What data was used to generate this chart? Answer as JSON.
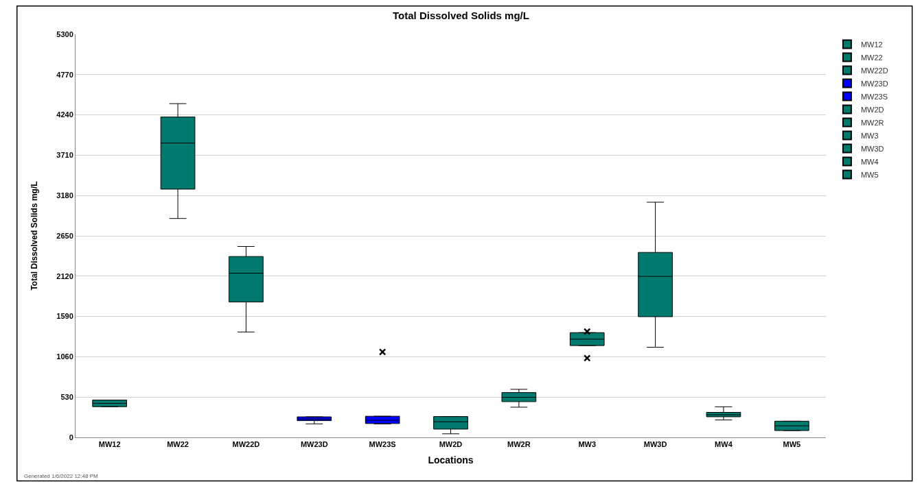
{
  "chart_data": {
    "type": "box",
    "title": "Total Dissolved Solids mg/L",
    "xlabel": "Locations",
    "ylabel": "Total Dissolved Solids mg/L",
    "categories": [
      "MW12",
      "MW22",
      "MW22D",
      "MW23D",
      "MW23S",
      "MW2D",
      "MW2R",
      "MW3",
      "MW3D",
      "MW4",
      "MW5"
    ],
    "series": [
      {
        "name": "MW12",
        "color": "#00796f",
        "boxes": [
          {
            "low": 404,
            "q1": 404,
            "median": 447,
            "q3": 491,
            "high": 491
          },
          null,
          null,
          null,
          null,
          null,
          null,
          null,
          null,
          null,
          null
        ]
      },
      {
        "name": "MW22",
        "color": "#00796f",
        "boxes": [
          null,
          {
            "low": 2878,
            "q1": 3264,
            "median": 3870,
            "q3": 4212,
            "high": 4388
          },
          null,
          null,
          null,
          null,
          null,
          null,
          null,
          null,
          null
        ]
      },
      {
        "name": "MW22D",
        "color": "#00796f",
        "boxes": [
          null,
          null,
          {
            "low": 1386,
            "q1": 1781,
            "median": 2159,
            "q3": 2378,
            "high": 2510
          },
          null,
          null,
          null,
          null,
          null,
          null,
          null,
          null
        ]
      },
      {
        "name": "MW23D",
        "color": "#0000ff",
        "boxes": [
          null,
          null,
          null,
          {
            "low": 178,
            "q1": 220,
            "median": 240,
            "q3": 270,
            "high": 270
          },
          null,
          null,
          null,
          null,
          null,
          null,
          null
        ]
      },
      {
        "name": "MW23S",
        "color": "#0000ff",
        "boxes": [
          null,
          null,
          null,
          null,
          {
            "low": 178,
            "q1": 182,
            "median": 224,
            "q3": 278,
            "high": 278,
            "outliers": [
              1123
            ]
          },
          null,
          null,
          null,
          null,
          null,
          null
        ]
      },
      {
        "name": "MW2D",
        "color": "#00796f",
        "boxes": [
          null,
          null,
          null,
          null,
          null,
          {
            "low": 47,
            "q1": 109,
            "median": 205,
            "q3": 274,
            "high": 274
          },
          null,
          null,
          null,
          null,
          null
        ]
      },
      {
        "name": "MW2R",
        "color": "#00796f",
        "boxes": [
          null,
          null,
          null,
          null,
          null,
          null,
          {
            "low": 397,
            "q1": 470,
            "median": 527,
            "q3": 589,
            "high": 632
          },
          null,
          null,
          null,
          null
        ]
      },
      {
        "name": "MW3",
        "color": "#00796f",
        "boxes": [
          null,
          null,
          null,
          null,
          null,
          null,
          null,
          {
            "low": 1207,
            "q1": 1207,
            "median": 1292,
            "q3": 1377,
            "high": 1377,
            "outliers": [
              1392,
              1042
            ]
          },
          null,
          null,
          null
        ]
      },
      {
        "name": "MW3D",
        "color": "#00796f",
        "boxes": [
          null,
          null,
          null,
          null,
          null,
          null,
          null,
          null,
          {
            "low": 1185,
            "q1": 1587,
            "median": 2117,
            "q3": 2432,
            "high": 3092
          },
          null,
          null
        ]
      },
      {
        "name": "MW4",
        "color": "#00796f",
        "boxes": [
          null,
          null,
          null,
          null,
          null,
          null,
          null,
          null,
          null,
          {
            "low": 229,
            "q1": 271,
            "median": 298,
            "q3": 329,
            "high": 402
          },
          null
        ]
      },
      {
        "name": "MW5",
        "color": "#00796f",
        "boxes": [
          null,
          null,
          null,
          null,
          null,
          null,
          null,
          null,
          null,
          null,
          {
            "low": 90,
            "q1": 90,
            "median": 152,
            "q3": 213,
            "high": 213
          }
        ]
      }
    ],
    "ylim": [
      0,
      5300
    ],
    "yticks": [
      0,
      530,
      1060,
      1590,
      2120,
      2650,
      3180,
      3710,
      4240,
      4770,
      5300
    ],
    "grid": "y",
    "legend": "top right",
    "annotations": [
      "Generated 1/6/2022 12:48 PM"
    ]
  }
}
